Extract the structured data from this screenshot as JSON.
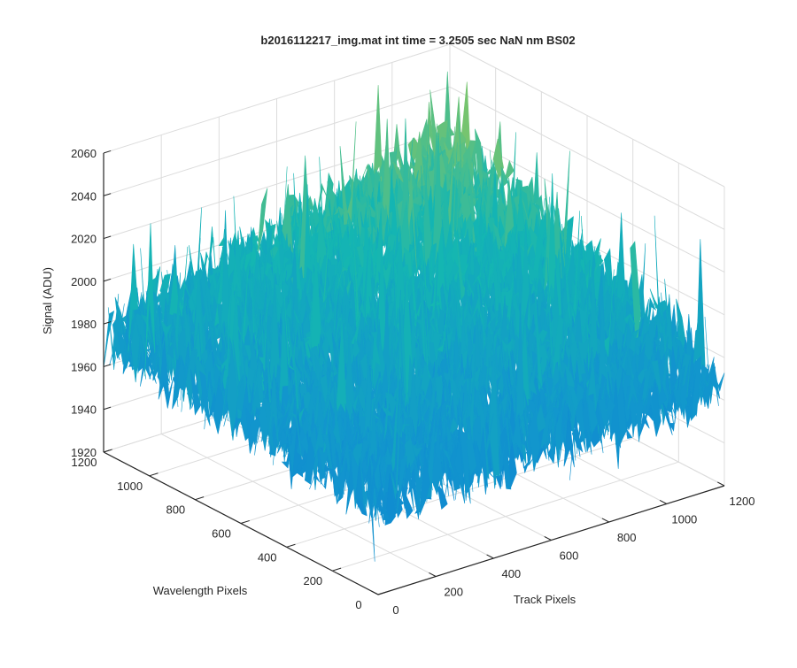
{
  "chart_data": {
    "type": "surface",
    "title": "b2016112217_img.mat int time = 3.2505 sec  NaN nm BS02",
    "xlabel": "Track Pixels",
    "ylabel": "Wavelength Pixels",
    "zlabel": "Signal (ADU)",
    "xlim": [
      0,
      1200
    ],
    "ylim": [
      0,
      1200
    ],
    "zlim": [
      1920,
      2060
    ],
    "x_ticks": [
      "0",
      "200",
      "400",
      "600",
      "800",
      "1000",
      "1200"
    ],
    "y_ticks": [
      "0",
      "200",
      "400",
      "600",
      "800",
      "1000",
      "1200"
    ],
    "z_ticks": [
      "1920",
      "1940",
      "1960",
      "1980",
      "2000",
      "2020",
      "2040",
      "2060"
    ],
    "grid": true,
    "colormap": "parula",
    "colors": {
      "low": "#0b72d8",
      "mid": "#12b3b7",
      "high": "#d9c238",
      "axis": "#262626",
      "grid": "#dcdcdc"
    },
    "surface_summary": {
      "mean_signal": 1975,
      "min_signal": 1925,
      "max_signal": 2055,
      "description_edges": {
        "corner_x0_y0": 1965,
        "corner_x1200_y0": 1968,
        "corner_x0_y1200": 1975,
        "corner_x1200_y1200": 2015
      }
    }
  }
}
